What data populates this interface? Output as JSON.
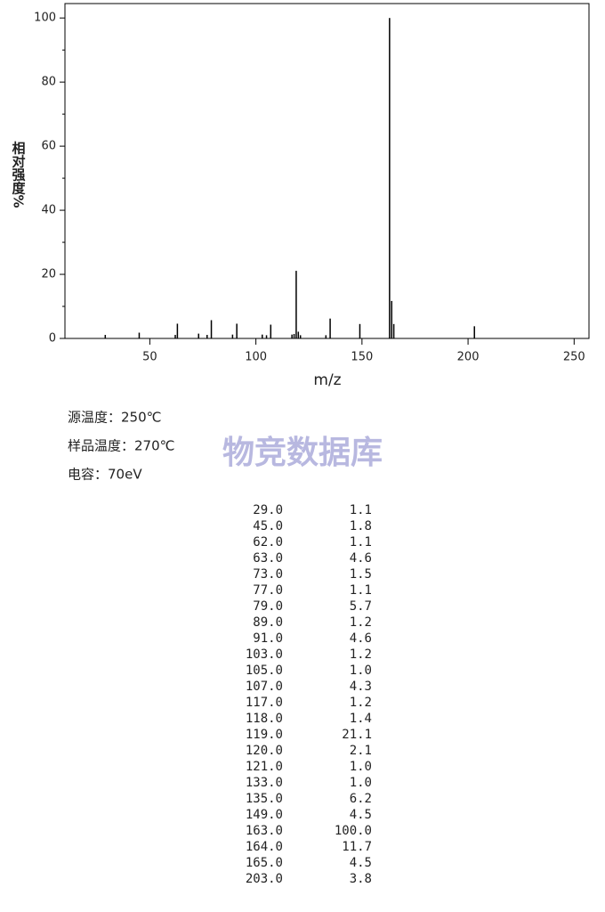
{
  "chart_data": {
    "type": "stick",
    "xlabel": "m/z",
    "ylabel": "相对强度%",
    "x": [
      29,
      45,
      62,
      63,
      73,
      77,
      79,
      89,
      91,
      103,
      105,
      107,
      117,
      118,
      119,
      120,
      121,
      133,
      135,
      149,
      163,
      164,
      165,
      203
    ],
    "values": [
      1.1,
      1.8,
      1.1,
      4.6,
      1.5,
      1.1,
      5.7,
      1.2,
      4.6,
      1.2,
      1.0,
      4.3,
      1.2,
      1.4,
      21.1,
      2.1,
      1.0,
      1.0,
      6.2,
      4.5,
      100.0,
      11.7,
      4.5,
      3.8
    ],
    "color": "#000000",
    "xlim": [
      10,
      257
    ],
    "ylim": [
      0,
      104.5
    ],
    "xticks": [
      50,
      100,
      150,
      200,
      250
    ],
    "yticks": [
      0,
      20,
      40,
      60,
      80,
      100
    ],
    "yminorticks": [
      10,
      30,
      50,
      70,
      90
    ]
  },
  "conditions": [
    "源温度：250℃",
    "样品温度：270℃",
    "电容：70eV"
  ],
  "watermark": "物竞数据库",
  "peak_table": {
    "rows": [
      [
        "29.0",
        "1.1"
      ],
      [
        "45.0",
        "1.8"
      ],
      [
        "62.0",
        "1.1"
      ],
      [
        "63.0",
        "4.6"
      ],
      [
        "73.0",
        "1.5"
      ],
      [
        "77.0",
        "1.1"
      ],
      [
        "79.0",
        "5.7"
      ],
      [
        "89.0",
        "1.2"
      ],
      [
        "91.0",
        "4.6"
      ],
      [
        "103.0",
        "1.2"
      ],
      [
        "105.0",
        "1.0"
      ],
      [
        "107.0",
        "4.3"
      ],
      [
        "117.0",
        "1.2"
      ],
      [
        "118.0",
        "1.4"
      ],
      [
        "119.0",
        "21.1"
      ],
      [
        "120.0",
        "2.1"
      ],
      [
        "121.0",
        "1.0"
      ],
      [
        "133.0",
        "1.0"
      ],
      [
        "135.0",
        "6.2"
      ],
      [
        "149.0",
        "4.5"
      ],
      [
        "163.0",
        "100.0"
      ],
      [
        "164.0",
        "11.7"
      ],
      [
        "165.0",
        "4.5"
      ],
      [
        "203.0",
        "3.8"
      ]
    ]
  }
}
